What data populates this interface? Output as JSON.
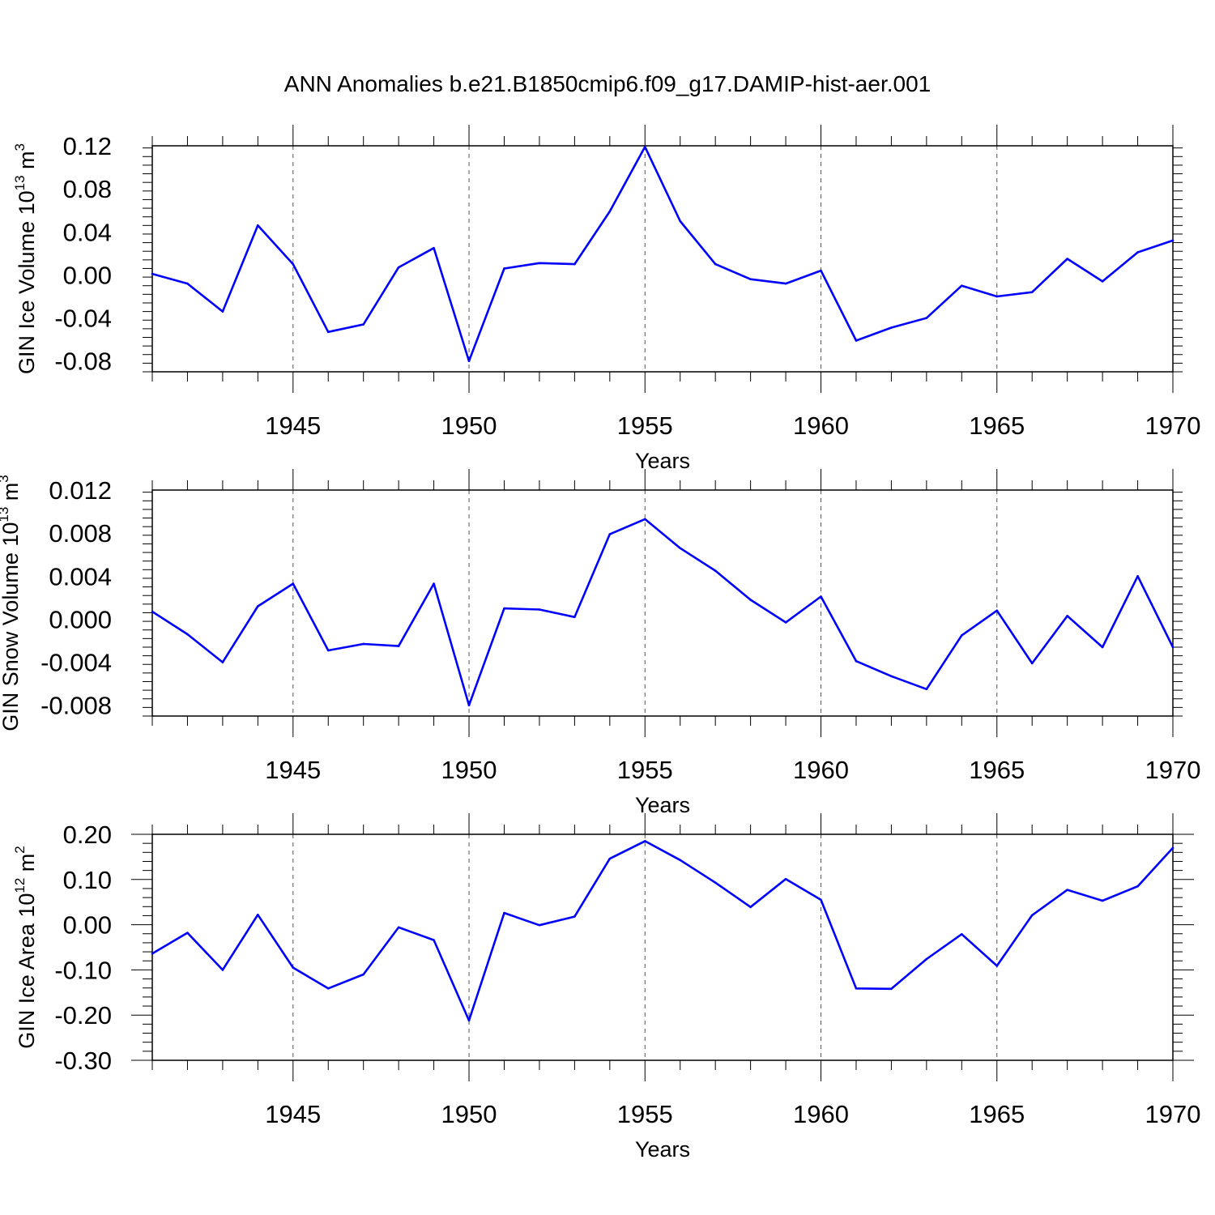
{
  "title": "ANN Anomalies b.e21.B1850cmip6.f09_g17.DAMIP-hist-aer.001",
  "line_color": "#0000ff",
  "chart_data": [
    {
      "type": "line",
      "title": "",
      "xlabel": "Years",
      "ylabel": "GIN Ice Volume 10",
      "ylabel_exp": "13",
      "ylabel_unit": " m",
      "ylabel_unit_exp": "3",
      "x": [
        1941,
        1942,
        1943,
        1944,
        1945,
        1946,
        1947,
        1948,
        1949,
        1950,
        1951,
        1952,
        1953,
        1954,
        1955,
        1956,
        1957,
        1958,
        1959,
        1960,
        1961,
        1962,
        1963,
        1964,
        1965,
        1966,
        1967,
        1968,
        1969,
        1970
      ],
      "series": [
        {
          "values": [
            0.001,
            -0.008,
            -0.034,
            0.046,
            0.01,
            -0.053,
            -0.046,
            0.007,
            0.025,
            -0.08,
            0.006,
            0.011,
            0.01,
            0.059,
            0.119,
            0.05,
            0.01,
            -0.004,
            -0.008,
            0.004,
            -0.061,
            -0.049,
            -0.04,
            -0.01,
            -0.02,
            -0.016,
            0.015,
            -0.006,
            0.021,
            0.032
          ]
        }
      ],
      "xlim": [
        1941,
        1970
      ],
      "ylim": [
        -0.09,
        0.12
      ],
      "xticks": [
        1945,
        1950,
        1955,
        1960,
        1965,
        1970
      ],
      "yticks": [
        -0.08,
        -0.04,
        0.0,
        0.04,
        0.08,
        0.12
      ],
      "ytick_labels": [
        "-0.08",
        "-0.04",
        "0.00",
        "0.04",
        "0.08",
        "0.12"
      ],
      "grid": "vertical-dashed"
    },
    {
      "type": "line",
      "title": "",
      "xlabel": "Years",
      "ylabel": "GIN Snow Volume 10",
      "ylabel_exp": "13",
      "ylabel_unit": " m",
      "ylabel_unit_exp": "3",
      "x": [
        1941,
        1942,
        1943,
        1944,
        1945,
        1946,
        1947,
        1948,
        1949,
        1950,
        1951,
        1952,
        1953,
        1954,
        1955,
        1956,
        1957,
        1958,
        1959,
        1960,
        1961,
        1962,
        1963,
        1964,
        1965,
        1966,
        1967,
        1968,
        1969,
        1970
      ],
      "series": [
        {
          "values": [
            0.0007,
            -0.0014,
            -0.004,
            0.0012,
            0.0033,
            -0.0029,
            -0.0023,
            -0.0025,
            0.0033,
            -0.008,
            0.001,
            0.0009,
            0.0002,
            0.0079,
            0.0093,
            0.0066,
            0.0045,
            0.0018,
            -0.0003,
            0.0021,
            -0.0039,
            -0.0053,
            -0.0065,
            -0.0015,
            0.0008,
            -0.0041,
            0.0003,
            -0.0026,
            0.004,
            -0.0026
          ]
        }
      ],
      "xlim": [
        1941,
        1970
      ],
      "ylim": [
        -0.009,
        0.012
      ],
      "xticks": [
        1945,
        1950,
        1955,
        1960,
        1965,
        1970
      ],
      "yticks": [
        -0.008,
        -0.004,
        0.0,
        0.004,
        0.008,
        0.012
      ],
      "ytick_labels": [
        "-0.008",
        "-0.004",
        "0.000",
        "0.004",
        "0.008",
        "0.012"
      ],
      "grid": "vertical-dashed"
    },
    {
      "type": "line",
      "title": "",
      "xlabel": "Years",
      "ylabel": "GIN Ice Area 10",
      "ylabel_exp": "12",
      "ylabel_unit": " m",
      "ylabel_unit_exp": "2",
      "x": [
        1941,
        1942,
        1943,
        1944,
        1945,
        1946,
        1947,
        1948,
        1949,
        1950,
        1951,
        1952,
        1953,
        1954,
        1955,
        1956,
        1957,
        1958,
        1959,
        1960,
        1961,
        1962,
        1963,
        1964,
        1965,
        1966,
        1967,
        1968,
        1969,
        1970
      ],
      "series": [
        {
          "values": [
            -0.064,
            -0.018,
            -0.1,
            0.022,
            -0.095,
            -0.141,
            -0.11,
            -0.006,
            -0.034,
            -0.212,
            0.026,
            -0.001,
            0.018,
            0.146,
            0.185,
            0.143,
            0.093,
            0.039,
            0.101,
            0.055,
            -0.141,
            -0.142,
            -0.076,
            -0.021,
            -0.091,
            0.021,
            0.077,
            0.053,
            0.085,
            0.17
          ]
        }
      ],
      "xlim": [
        1941,
        1970
      ],
      "ylim": [
        -0.3,
        0.2
      ],
      "xticks": [
        1945,
        1950,
        1955,
        1960,
        1965,
        1970
      ],
      "yticks": [
        -0.3,
        -0.2,
        -0.1,
        0.0,
        0.1,
        0.2
      ],
      "ytick_labels": [
        "-0.30",
        "-0.20",
        "-0.10",
        "0.00",
        "0.10",
        "0.20"
      ],
      "grid": "vertical-dashed"
    }
  ]
}
